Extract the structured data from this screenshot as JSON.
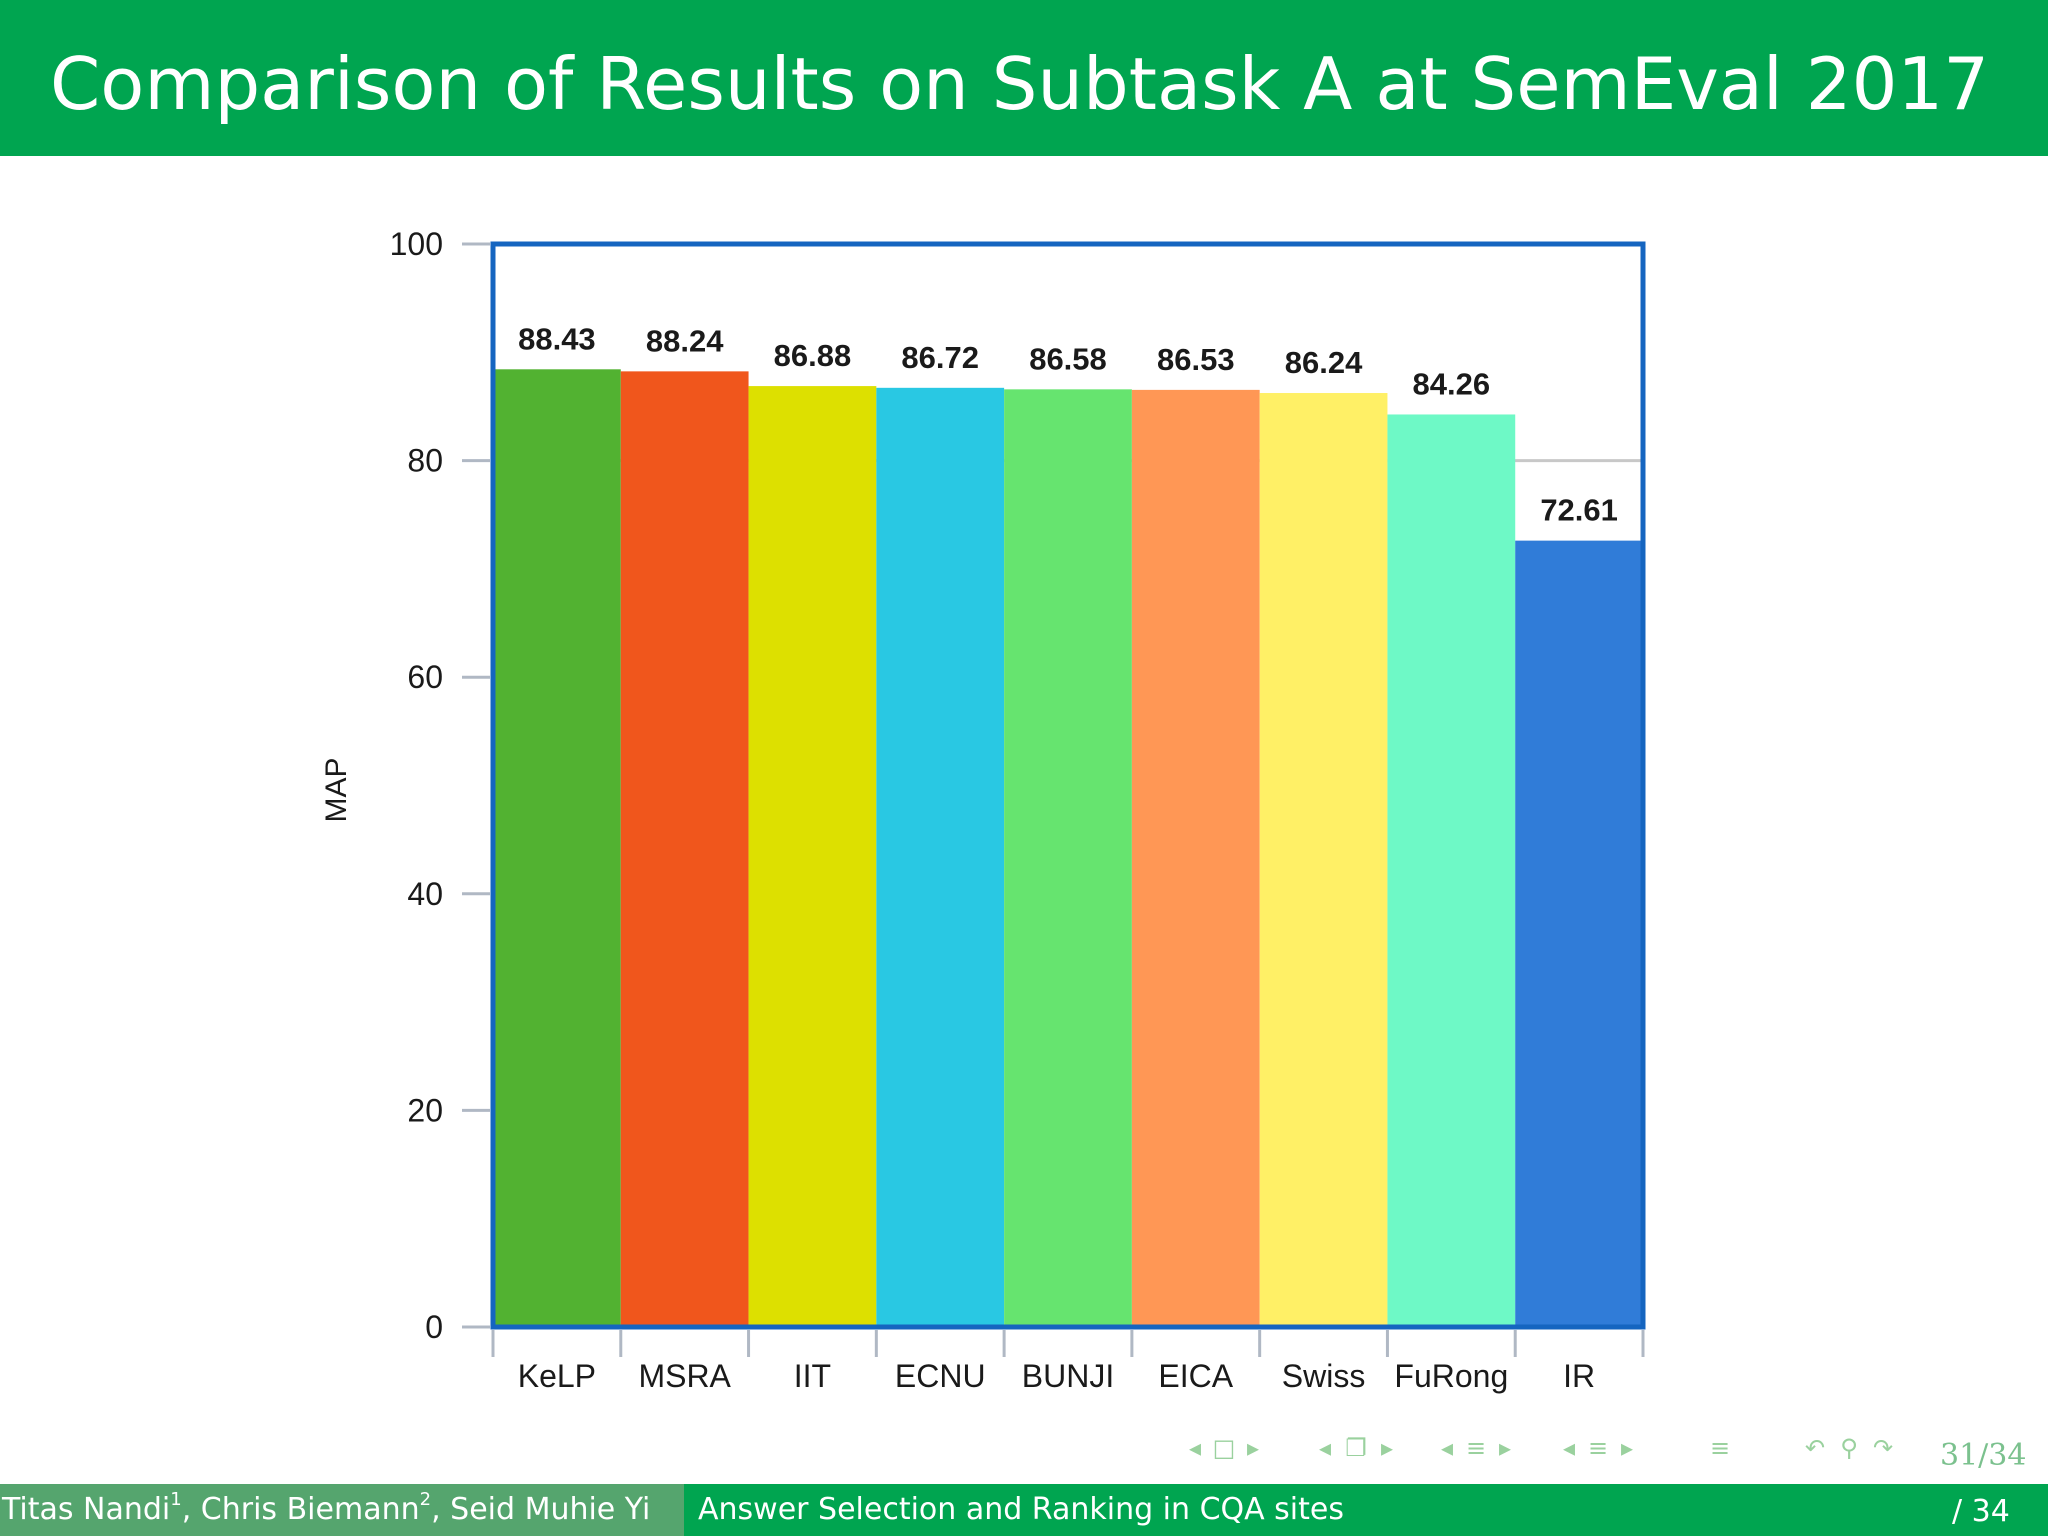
{
  "slide": {
    "title": "Comparison of Results on Subtask A at SemEval 2017",
    "page": "31/34"
  },
  "colors": {
    "title_bar": "#00a550",
    "footer_dark": "#55a56e",
    "frame": "#1565c0"
  },
  "chart_data": {
    "type": "bar",
    "categories": [
      "KeLP",
      "MSRA",
      "IIT",
      "ECNU",
      "BUNJI",
      "EICA",
      "Swiss",
      "FuRong",
      "IR"
    ],
    "values": [
      88.43,
      88.24,
      86.88,
      86.72,
      86.58,
      86.53,
      86.24,
      84.26,
      72.61
    ],
    "value_labels": [
      "88.43",
      "88.24",
      "86.88",
      "86.72",
      "86.58",
      "86.53",
      "86.24",
      "84.26",
      "72.61"
    ],
    "bar_colors": [
      "#52b231",
      "#f0561c",
      "#dde000",
      "#29c8e3",
      "#66e46f",
      "#ff9755",
      "#fff066",
      "#6ef9c6",
      "#307cd8"
    ],
    "ylabel": "MAP",
    "ylim": [
      0,
      100
    ],
    "yticks": [
      0,
      20,
      40,
      60,
      80,
      100
    ],
    "gridlines": [
      80
    ]
  },
  "footer": {
    "authors_parts": [
      "Titas Nandi",
      "1",
      ", Chris Biemann",
      "2",
      ", Seid Muhie Yi"
    ],
    "talk_title": "Answer Selection and Ranking in CQA sites",
    "pages": "/ 34"
  },
  "nav": {
    "icons": [
      "nav-prev-icon",
      "nav-frame-icon",
      "nav-next-icon",
      "nav-prev-subsection-icon",
      "nav-subsection-icon",
      "nav-next-subsection-icon",
      "nav-prev-section-icon",
      "nav-section-icon",
      "nav-next-section-icon",
      "nav-prev-slide-icon",
      "nav-slide-icon",
      "nav-next-slide-icon",
      "nav-menu-icon",
      "nav-back-icon",
      "nav-search-icon",
      "nav-forward-icon"
    ]
  }
}
